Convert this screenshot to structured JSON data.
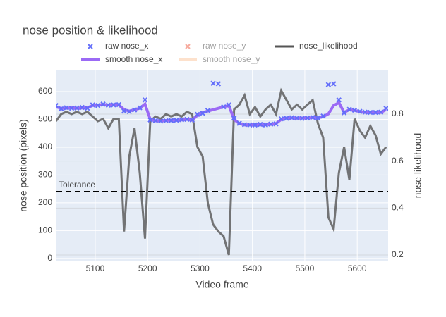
{
  "chart_data": {
    "type": "line",
    "title": "nose position & likelihood",
    "xlabel": "Video frame",
    "ylabel": "nose position (pixels)",
    "y2label": "nose likelihood",
    "x": [
      5025,
      5035,
      5045,
      5055,
      5065,
      5075,
      5085,
      5095,
      5105,
      5115,
      5125,
      5135,
      5145,
      5155,
      5165,
      5175,
      5185,
      5195,
      5205,
      5215,
      5225,
      5235,
      5245,
      5255,
      5265,
      5275,
      5285,
      5295,
      5305,
      5315,
      5325,
      5335,
      5345,
      5355,
      5365,
      5375,
      5385,
      5395,
      5405,
      5415,
      5425,
      5435,
      5445,
      5455,
      5465,
      5475,
      5485,
      5495,
      5505,
      5515,
      5525,
      5535,
      5545,
      5555,
      5565,
      5575,
      5585,
      5595,
      5605,
      5615,
      5625,
      5635,
      5645,
      5655
    ],
    "series": [
      {
        "name": "raw nose_x",
        "color": "#636efa",
        "mode": "markers",
        "axis": "y",
        "values": [
          550,
          538,
          542,
          540,
          541,
          543,
          540,
          552,
          550,
          555,
          551,
          552,
          553,
          530,
          528,
          534,
          542,
          570,
          498,
          496,
          494,
          495,
          496,
          497,
          499,
          500,
          498,
          518,
          522,
          532,
          630,
          628,
          545,
          552,
          505,
          486,
          481,
          480,
          480,
          482,
          480,
          483,
          484,
          502,
          504,
          506,
          505,
          504,
          505,
          507,
          505,
          512,
          625,
          628,
          570,
          524,
          536,
          533,
          529,
          526,
          525,
          525,
          526,
          540
        ]
      },
      {
        "name": "raw nose_y",
        "color": "#ef553b",
        "mode": "markers",
        "axis": "y",
        "visible": false
      },
      {
        "name": "nose_likelihood",
        "color": "#555555",
        "mode": "lines",
        "axis": "y2",
        "values": [
          0.77,
          0.8,
          0.81,
          0.8,
          0.81,
          0.8,
          0.81,
          0.79,
          0.77,
          0.78,
          0.74,
          0.78,
          0.78,
          0.3,
          0.62,
          0.74,
          0.55,
          0.27,
          0.77,
          0.79,
          0.78,
          0.8,
          0.79,
          0.8,
          0.79,
          0.81,
          0.8,
          0.66,
          0.62,
          0.42,
          0.33,
          0.3,
          0.28,
          0.2,
          0.82,
          0.84,
          0.88,
          0.8,
          0.83,
          0.79,
          0.82,
          0.84,
          0.8,
          0.9,
          0.86,
          0.82,
          0.84,
          0.82,
          0.84,
          0.86,
          0.76,
          0.7,
          0.36,
          0.31,
          0.55,
          0.66,
          0.52,
          0.78,
          0.73,
          0.7,
          0.75,
          0.71,
          0.63,
          0.66
        ]
      },
      {
        "name": "smooth nose_x",
        "color": "#9b6af5",
        "mode": "lines",
        "axis": "y",
        "values": [
          545,
          540,
          540,
          542,
          540,
          541,
          542,
          550,
          552,
          553,
          552,
          553,
          552,
          535,
          530,
          535,
          540,
          555,
          500,
          495,
          495,
          496,
          497,
          496,
          498,
          500,
          497,
          515,
          525,
          530,
          535,
          540,
          545,
          550,
          500,
          485,
          480,
          480,
          481,
          480,
          481,
          482,
          485,
          500,
          505,
          505,
          504,
          505,
          505,
          506,
          505,
          510,
          520,
          550,
          560,
          525,
          535,
          532,
          528,
          525,
          526,
          524,
          525,
          535
        ]
      },
      {
        "name": "smooth nose_y",
        "color": "#fcc59a",
        "mode": "lines",
        "axis": "y",
        "visible": false
      }
    ],
    "xlim": [
      5026,
      5659
    ],
    "xticks": [
      5100,
      5200,
      5300,
      5400,
      5500,
      5600
    ],
    "ylim": [
      -8,
      676
    ],
    "yticks": [
      0,
      100,
      200,
      300,
      400,
      500,
      600
    ],
    "y2lim": [
      0.176,
      0.986
    ],
    "y2ticks": [
      0.2,
      0.4,
      0.6,
      0.8
    ],
    "tolerance": {
      "label": "Tolerance",
      "value": 0.47,
      "axis": "y2"
    },
    "grid": true
  }
}
